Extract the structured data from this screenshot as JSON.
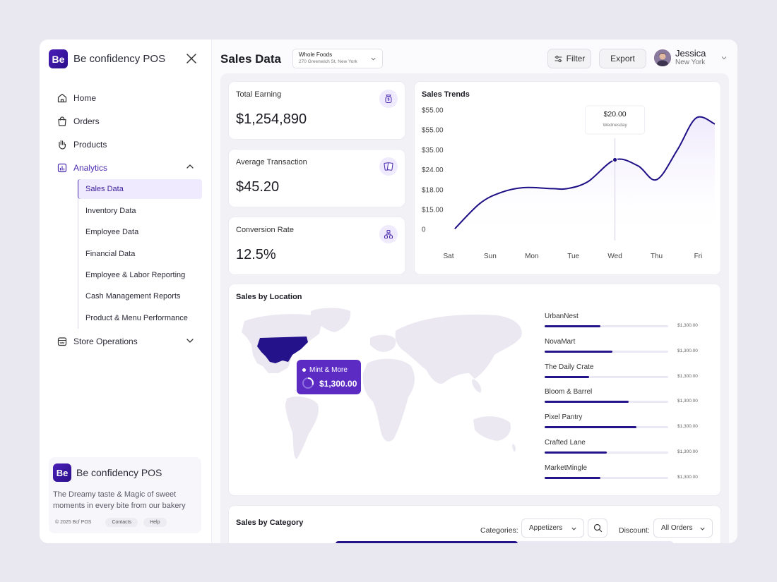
{
  "app": {
    "name": "Be confidency POS",
    "logo_text": "Be"
  },
  "sidebar": {
    "items": [
      {
        "label": "Home"
      },
      {
        "label": "Orders"
      },
      {
        "label": "Products"
      },
      {
        "label": "Analytics"
      }
    ],
    "analytics_sub": [
      "Sales Data",
      "Inventory Data",
      "Employee Data",
      "Financial Data",
      "Employee & Labor Reporting",
      "Cash Management Reports",
      "Product & Menu Performance"
    ],
    "store_ops": "Store Operations"
  },
  "promo": {
    "name": "Be confidency POS",
    "tagline": "The Dreamy taste & Magic of sweet moments in every bite from our bakery",
    "copyright": "© 2025 Bcf POS",
    "contacts": "Contacts",
    "help": "Help"
  },
  "header": {
    "title": "Sales Data",
    "store": {
      "name": "Whole Foods",
      "address": "270 Greenwich St, New York"
    },
    "filter": "Filter",
    "export": "Export",
    "user": {
      "name": "Jessica",
      "location": "New York"
    }
  },
  "kpis": [
    {
      "label": "Total Earning",
      "value": "$1,254,890",
      "icon": "money-bag-icon"
    },
    {
      "label": "Average Transaction",
      "value": "$45.20",
      "icon": "cards-icon"
    },
    {
      "label": "Conversion Rate",
      "value": "12.5%",
      "icon": "hierarchy-icon"
    }
  ],
  "trends": {
    "title": "Sales Trends",
    "tooltip": {
      "value": "$20.00",
      "day": "Wednesday"
    }
  },
  "chart_data": {
    "type": "area",
    "title": "Sales Trends",
    "categories": [
      "Sat",
      "Sun",
      "Mon",
      "Tue",
      "Wed",
      "Thu",
      "Fri"
    ],
    "y_tick_labels": [
      "$55.00",
      "$55.00",
      "$35.00",
      "$24.00",
      "$18.00",
      "$15.00",
      "0"
    ],
    "x": [
      "Sat",
      "Sat–Sun",
      "Sun",
      "Mon",
      "Mon–Tue",
      "Tue",
      "Tue–Wed",
      "Wed",
      "Wed–Thu",
      "Thu",
      "Thu–Fri",
      "Fri",
      "Fri"
    ],
    "y_level": [
      0.03,
      1.3,
      1.85,
      2.1,
      2.05,
      2.05,
      2.4,
      3.5,
      3.2,
      2.5,
      4.0,
      5.6,
      5.3
    ],
    "y_level_note": "in tick-row units: 0 = '0' row, 6 = top row",
    "highlight": {
      "category": "Wed",
      "value": "$20.00"
    },
    "line_color": "#1e0f86",
    "fill_color": "#efeafc"
  },
  "location": {
    "title": "Sales by Location",
    "tooltip": {
      "name": "Mint & More",
      "value": "$1,300.00"
    },
    "rows": [
      {
        "name": "UrbanNest",
        "value": "$1,300.00",
        "pct": 0.45
      },
      {
        "name": "NovaMart",
        "value": "$1,300.00",
        "pct": 0.55
      },
      {
        "name": "The Daily Crate",
        "value": "$1,300.00",
        "pct": 0.36
      },
      {
        "name": "Bloom & Barrel",
        "value": "$1,300.00",
        "pct": 0.68
      },
      {
        "name": "Pixel Pantry",
        "value": "$1,300.00",
        "pct": 0.74
      },
      {
        "name": "Crafted Lane",
        "value": "$1,300.00",
        "pct": 0.5
      },
      {
        "name": "MarketMingle",
        "value": "$1,300.00",
        "pct": 0.45
      }
    ]
  },
  "category": {
    "title": "Sales by Category",
    "categories_label": "Categories:",
    "categories_value": "Appetizers",
    "discount_label": "Discount:",
    "discount_value": "All Orders"
  },
  "colors": {
    "accent": "#4a2bb0",
    "dark": "#1e0f86",
    "light": "#efeafd"
  }
}
